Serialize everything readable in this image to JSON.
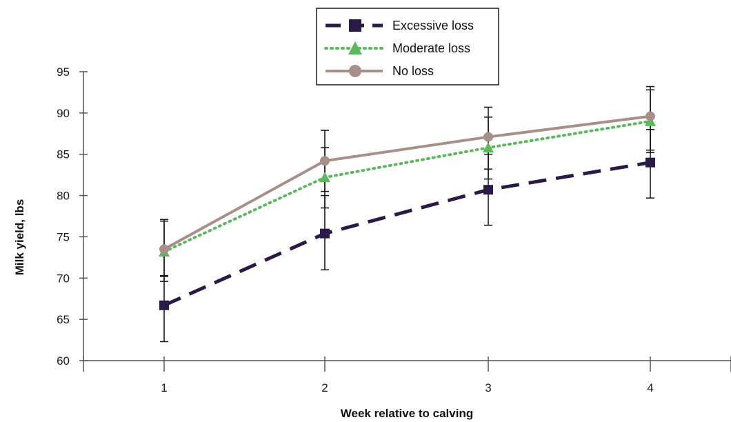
{
  "chart_data": {
    "type": "line",
    "title": "",
    "xlabel": "Week relative to calving",
    "ylabel": "Milk yield, lbs",
    "x": [
      1,
      2,
      3,
      4
    ],
    "x_tick_labels": [
      "1",
      "2",
      "3",
      "4"
    ],
    "ylim": [
      60,
      95
    ],
    "y_ticks": [
      60,
      65,
      70,
      75,
      80,
      85,
      90,
      95
    ],
    "y_tick_labels": [
      "60",
      "65",
      "70",
      "75",
      "80",
      "85",
      "90",
      "95"
    ],
    "grid": false,
    "legend_position": "top-center",
    "series": [
      {
        "name": "Excessive loss",
        "values": [
          66.7,
          75.4,
          80.7,
          84.0
        ],
        "error_low": [
          62.3,
          71.0,
          76.4,
          79.7
        ],
        "error_high": [
          70.3,
          80.0,
          85.0,
          88.0
        ],
        "color": "#2a1a45",
        "line_style": "dashed",
        "marker": "square"
      },
      {
        "name": "Moderate loss",
        "values": [
          73.2,
          82.2,
          85.8,
          89.0
        ],
        "error_low": [
          69.6,
          78.5,
          82.0,
          85.2
        ],
        "error_high": [
          76.9,
          85.8,
          89.5,
          92.8
        ],
        "color": "#5cb85c",
        "line_style": "dotted",
        "marker": "triangle"
      },
      {
        "name": "No loss",
        "values": [
          73.5,
          84.2,
          87.1,
          89.6
        ],
        "error_low": [
          70.2,
          80.5,
          83.2,
          85.5
        ],
        "error_high": [
          77.1,
          87.9,
          90.7,
          93.2
        ],
        "color": "#a8908a",
        "line_style": "solid",
        "marker": "circle"
      }
    ]
  }
}
